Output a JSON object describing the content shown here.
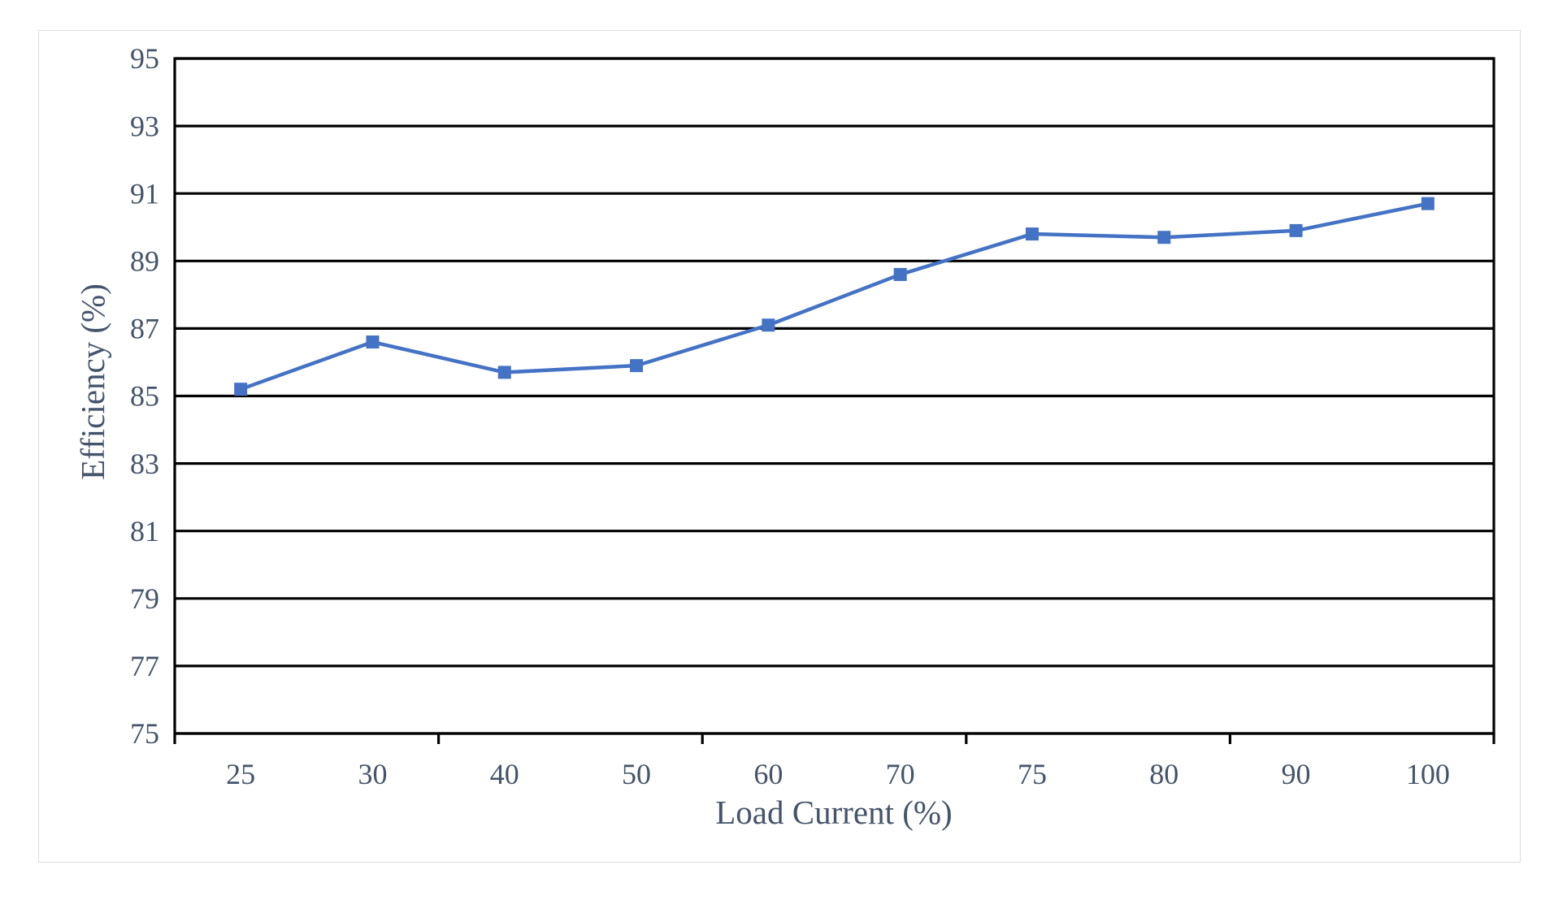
{
  "chart_data": {
    "type": "line",
    "title": "",
    "xlabel": "Load Current (%)",
    "ylabel": "Efficiency (%)",
    "categories": [
      "25",
      "30",
      "40",
      "50",
      "60",
      "70",
      "75",
      "80",
      "90",
      "100"
    ],
    "values": [
      85.2,
      86.6,
      85.7,
      85.9,
      87.1,
      88.6,
      89.8,
      89.7,
      89.9,
      90.7
    ],
    "ylim": [
      75,
      95
    ],
    "yticks": [
      75,
      77,
      79,
      81,
      83,
      85,
      87,
      89,
      91,
      93,
      95
    ],
    "xtick_mark_interval": 2,
    "grid": "horizontal-major",
    "legend_position": "none",
    "marker_style": "square",
    "series_color": "#4472C4",
    "axis_text_color": "#44546A",
    "axis_line_color": "#000000",
    "frame_border_color": "#D8DBE0"
  }
}
